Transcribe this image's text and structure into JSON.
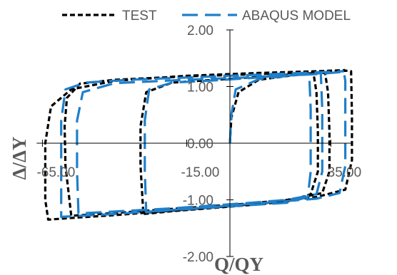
{
  "chart_data": {
    "type": "line",
    "title": "",
    "xlabel": "Q/QY",
    "ylabel": "Δ/ΔY",
    "xlim": [
      -67,
      42
    ],
    "ylim": [
      -2,
      2
    ],
    "x_ticks": [
      "-65.00",
      "-15.00",
      "35.00"
    ],
    "x_tick_values": [
      -65,
      -15,
      35
    ],
    "y_ticks": [
      "2.00",
      "1.00",
      "0.00",
      "-1.00",
      "-2.00"
    ],
    "y_tick_values": [
      2,
      1,
      0,
      -1,
      -2
    ],
    "grid": false,
    "legend_position": "top",
    "series": [
      {
        "name": "TEST",
        "color": "#000000",
        "style": "short-dash",
        "x": [
          0,
          0.5,
          3,
          10,
          22,
          29,
          30,
          30.5,
          30.5,
          28,
          20,
          5,
          -20,
          -30,
          -31,
          -31,
          -29,
          -20,
          -5,
          10,
          25,
          33,
          34,
          34.5,
          34.5,
          32,
          20,
          5,
          -20,
          -45,
          -55,
          -57,
          -57.3,
          -56.5,
          -52,
          -40,
          -15,
          10,
          30,
          41,
          42,
          42.3,
          42.3,
          40,
          30,
          10,
          -15,
          -40,
          -55,
          -63,
          -64,
          -64,
          -62,
          -55,
          -40,
          -15,
          10,
          30,
          40
        ],
        "y": [
          0,
          0.45,
          0.9,
          1.12,
          1.2,
          1.22,
          0.9,
          0.2,
          -0.5,
          -0.9,
          -1.03,
          -1.1,
          -1.2,
          -1.25,
          -0.4,
          0.3,
          0.9,
          1.07,
          1.12,
          1.17,
          1.23,
          1.24,
          0.9,
          0.2,
          -0.5,
          -0.88,
          -1.0,
          -1.07,
          -1.16,
          -1.25,
          -1.28,
          -0.4,
          0.3,
          0.8,
          1.05,
          1.12,
          1.18,
          1.22,
          1.26,
          1.28,
          1.27,
          0.5,
          -0.3,
          -0.82,
          -0.95,
          -1.07,
          -1.17,
          -1.27,
          -1.32,
          -1.35,
          -1.0,
          0.0,
          0.65,
          0.95,
          1.1,
          1.19,
          1.24,
          1.27,
          1.29
        ]
      },
      {
        "name": "ABAQUS MODEL",
        "color": "#1f7fc9",
        "style": "long-dash",
        "x": [
          0,
          0.5,
          2,
          10,
          22,
          27.5,
          28,
          28,
          27,
          20,
          5,
          -20,
          -29,
          -29.5,
          -29.5,
          -28,
          -20,
          -5,
          10,
          25,
          31.5,
          32,
          32,
          30,
          20,
          5,
          -20,
          -45,
          -52.5,
          -53,
          -53,
          -51,
          -40,
          -15,
          10,
          30,
          39.5,
          40,
          40,
          38,
          30,
          10,
          -15,
          -40,
          -55,
          -58.5,
          -58.5,
          -57,
          -50,
          -35,
          -15,
          10,
          30,
          39.5
        ],
        "y": [
          0,
          0.5,
          0.95,
          1.13,
          1.2,
          1.22,
          0.6,
          -0.5,
          -0.95,
          -1.05,
          -1.1,
          -1.18,
          -1.22,
          -0.5,
          0.4,
          0.95,
          1.07,
          1.11,
          1.16,
          1.22,
          1.24,
          0.6,
          -0.5,
          -0.9,
          -1.0,
          -1.06,
          -1.15,
          -1.22,
          -1.24,
          -0.5,
          0.4,
          0.9,
          1.06,
          1.12,
          1.17,
          1.22,
          1.26,
          1.1,
          -0.4,
          -0.88,
          -0.98,
          -1.06,
          -1.16,
          -1.25,
          -1.29,
          -1.3,
          0.4,
          0.95,
          1.07,
          1.12,
          1.16,
          1.21,
          1.25,
          1.27
        ]
      }
    ]
  }
}
